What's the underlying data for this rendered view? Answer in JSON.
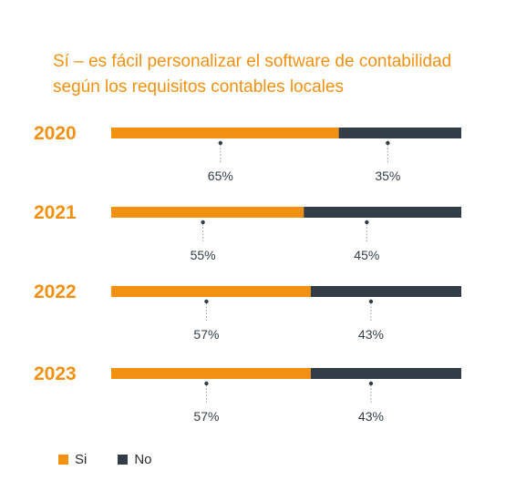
{
  "colors": {
    "si": "#F29111",
    "no": "#333D47",
    "title": "#F29111",
    "year_text": "#F29111",
    "label_text": "#333D47",
    "dot": "#333D47",
    "leader": "#9A9A9A"
  },
  "chart_data": {
    "type": "bar",
    "orientation": "horizontal",
    "stacked": true,
    "title_lines": [
      "Sí – es fácil personalizar el software de contabilidad",
      "según los requisitos contables locales"
    ],
    "categories": [
      "2020",
      "2021",
      "2022",
      "2023"
    ],
    "series": [
      {
        "name": "Si",
        "values": [
          65,
          55,
          57,
          57
        ],
        "labels": [
          "65%",
          "55%",
          "57%",
          "57%"
        ]
      },
      {
        "name": "No",
        "values": [
          35,
          45,
          43,
          43
        ],
        "labels": [
          "35%",
          "45%",
          "43%",
          "43%"
        ]
      }
    ],
    "xlim": [
      0,
      100
    ],
    "grid": false,
    "legend_position": "bottom-left"
  },
  "legend": [
    {
      "label": "Si",
      "color": "#F29111"
    },
    {
      "label": "No",
      "color": "#333D47"
    }
  ]
}
